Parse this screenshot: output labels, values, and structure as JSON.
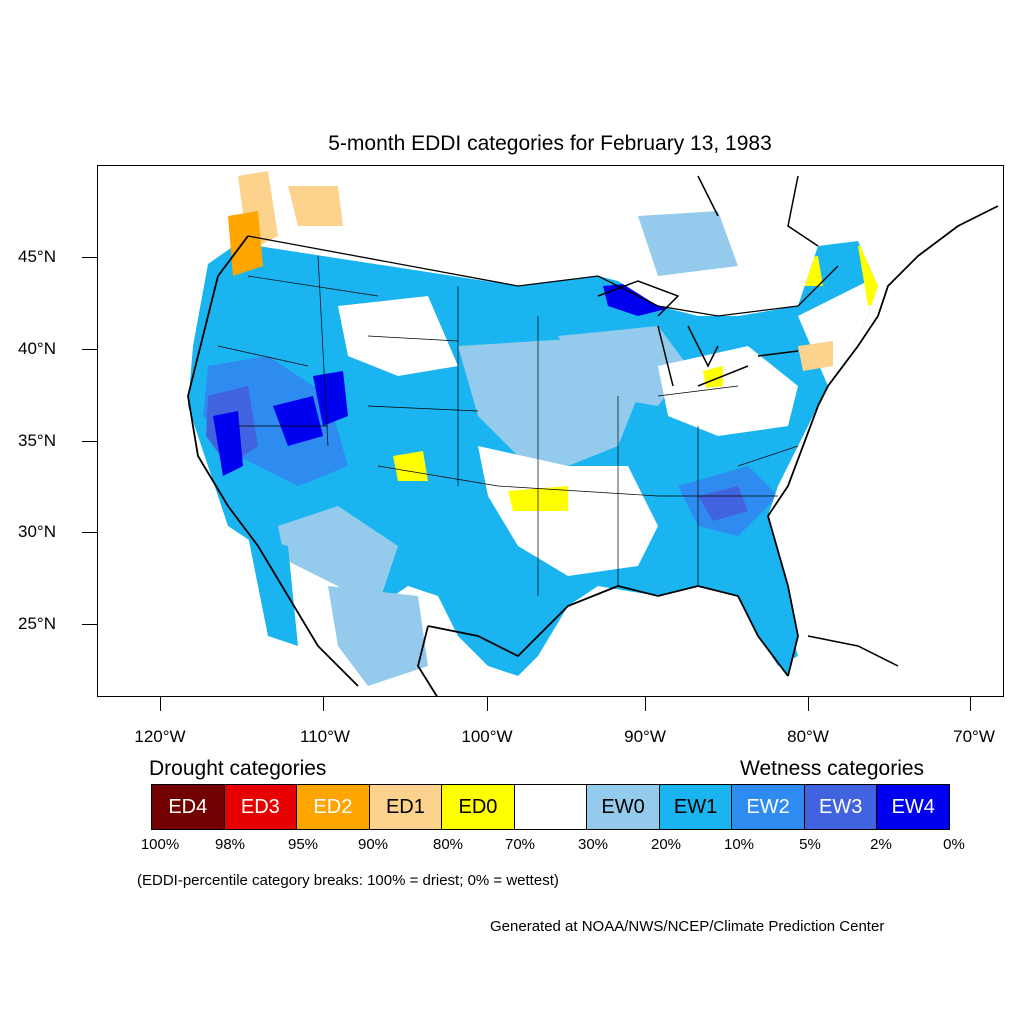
{
  "title": "5-month EDDI categories for February 13, 1983",
  "map": {
    "lat_labels": [
      "45°N",
      "40°N",
      "35°N",
      "30°N",
      "25°N"
    ],
    "lon_labels": [
      "120°W",
      "110°W",
      "100°W",
      "90°W",
      "80°W",
      "70°W"
    ],
    "colors": {
      "EW0": "#94cbec",
      "EW1": "#1ab4f0",
      "EW2": "#2e8cf0",
      "EW3": "#4163e0",
      "EW4": "#0000f0",
      "ED0": "#ffff00",
      "ED1": "#fcd28c",
      "ED2": "#ffa500"
    }
  },
  "legend": {
    "drought_heading": "Drought categories",
    "wetness_heading": "Wetness categories",
    "categories": [
      {
        "label": "ED4",
        "color": "#730000",
        "text_color": "#ffffff"
      },
      {
        "label": "ED3",
        "color": "#e60000",
        "text_color": "#ffffff"
      },
      {
        "label": "ED2",
        "color": "#ffa500",
        "text_color": "#ffffff"
      },
      {
        "label": "ED1",
        "color": "#fcd28c",
        "text_color": "#000000"
      },
      {
        "label": "ED0",
        "color": "#ffff00",
        "text_color": "#000000"
      },
      {
        "label": "",
        "color": "#ffffff",
        "text_color": "#000000"
      },
      {
        "label": "EW0",
        "color": "#94cbec",
        "text_color": "#000000"
      },
      {
        "label": "EW1",
        "color": "#1ab4f0",
        "text_color": "#000000"
      },
      {
        "label": "EW2",
        "color": "#2e8cf0",
        "text_color": "#ffffff"
      },
      {
        "label": "EW3",
        "color": "#4163e0",
        "text_color": "#ffffff"
      },
      {
        "label": "EW4",
        "color": "#0000f0",
        "text_color": "#ffffff"
      }
    ],
    "breaks": [
      "100%",
      "98%",
      "95%",
      "90%",
      "80%",
      "70%",
      "30%",
      "20%",
      "10%",
      "5%",
      "2%",
      "0%"
    ]
  },
  "note": "(EDDI-percentile category breaks: 100% = driest; 0% = wettest)",
  "credit": "Generated at NOAA/NWS/NCEP/Climate Prediction Center"
}
